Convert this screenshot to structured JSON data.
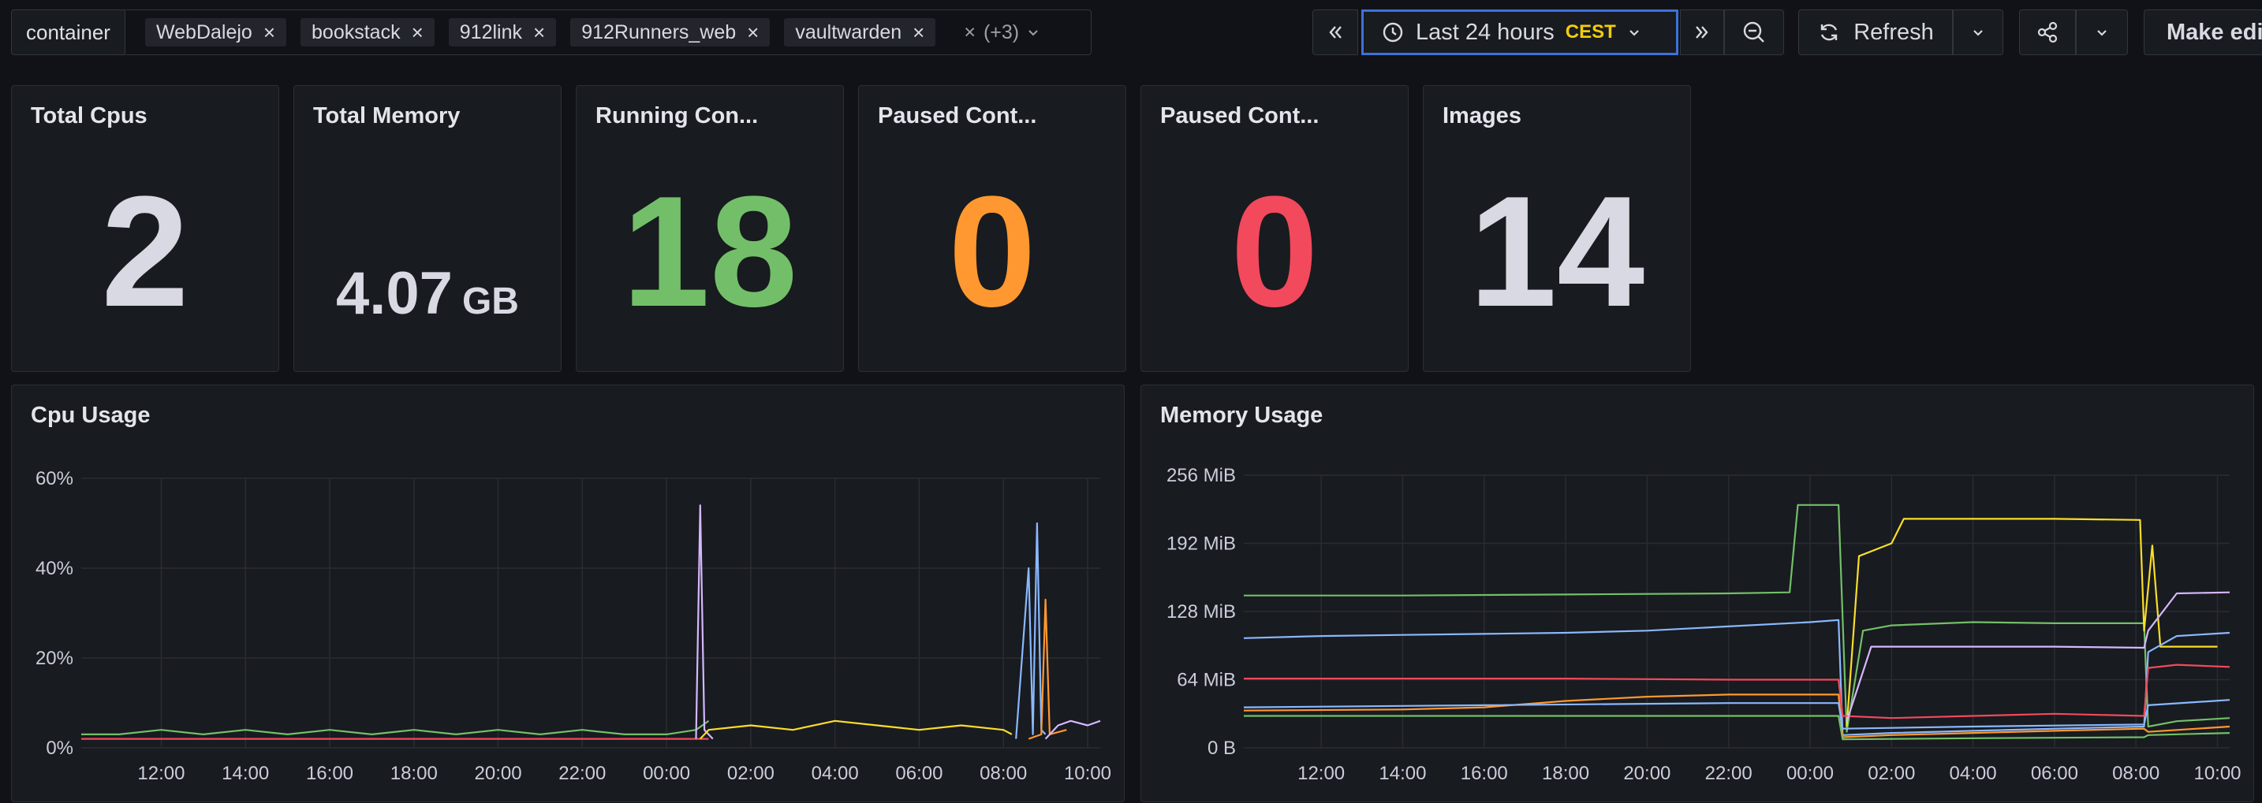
{
  "variables": {
    "label": "container",
    "chips": [
      "WebDalejo",
      "bookstack",
      "912link",
      "912Runners_web",
      "vaultwarden"
    ],
    "more": "(+3)"
  },
  "toolbar": {
    "time_range": "Last 24 hours",
    "timezone": "CEST",
    "refresh": "Refresh",
    "make_editable": "Make editable"
  },
  "stats": [
    {
      "title": "Total Cpus",
      "value": "2",
      "unit": "",
      "color": "#d8d9e2"
    },
    {
      "title": "Total Memory",
      "value": "4.07",
      "unit": "GB",
      "color": "#d8d9e2"
    },
    {
      "title": "Running Con...",
      "value": "18",
      "unit": "",
      "color": "#73bf69"
    },
    {
      "title": "Paused Cont...",
      "value": "0",
      "unit": "",
      "color": "#ff9830"
    },
    {
      "title": "Paused Cont...",
      "value": "0",
      "unit": "",
      "color": "#f2495c"
    },
    {
      "title": "Images",
      "value": "14",
      "unit": "",
      "color": "#d8d9e2"
    }
  ],
  "chart_data": [
    {
      "type": "line",
      "title": "Cpu Usage",
      "y_ticks": [
        "60%",
        "40%",
        "20%",
        "0%"
      ],
      "ylim": [
        0,
        60
      ],
      "x_ticks": [
        "12:00",
        "14:00",
        "16:00",
        "18:00",
        "20:00",
        "22:00",
        "00:00",
        "02:00",
        "04:00",
        "06:00",
        "08:00",
        "10:00"
      ],
      "xlim": [
        10.1,
        34.3
      ],
      "grid": true,
      "series": [
        {
          "color": "#73bf69",
          "points": [
            [
              10.1,
              3
            ],
            [
              11,
              3
            ],
            [
              12,
              4
            ],
            [
              13,
              3
            ],
            [
              14,
              4
            ],
            [
              15,
              3
            ],
            [
              16,
              4
            ],
            [
              17,
              3
            ],
            [
              18,
              4
            ],
            [
              19,
              3
            ],
            [
              20,
              4
            ],
            [
              21,
              3
            ],
            [
              22,
              4
            ],
            [
              23,
              3
            ],
            [
              24,
              3
            ],
            [
              24.7,
              4
            ],
            [
              25,
              6
            ]
          ]
        },
        {
          "color": "#f2495c",
          "points": [
            [
              10.1,
              2
            ],
            [
              12,
              2
            ],
            [
              14,
              2
            ],
            [
              16,
              2
            ],
            [
              18,
              2
            ],
            [
              20,
              2
            ],
            [
              22,
              2
            ],
            [
              24,
              2
            ],
            [
              25,
              2
            ]
          ]
        },
        {
          "color": "#d6b7ff",
          "points": [
            [
              24.7,
              2
            ],
            [
              24.8,
              54
            ],
            [
              24.9,
              4
            ],
            [
              25.1,
              2
            ]
          ]
        },
        {
          "color": "#fade2a",
          "points": [
            [
              24.8,
              2
            ],
            [
              25,
              4
            ],
            [
              26,
              5
            ],
            [
              27,
              4
            ],
            [
              28,
              6
            ],
            [
              29,
              5
            ],
            [
              30,
              4
            ],
            [
              31,
              5
            ],
            [
              32,
              4
            ],
            [
              32.2,
              3
            ]
          ]
        },
        {
          "color": "#8ab8ff",
          "points": [
            [
              32.3,
              2
            ],
            [
              32.6,
              40
            ],
            [
              32.7,
              3
            ],
            [
              32.8,
              50
            ],
            [
              32.9,
              4
            ],
            [
              33,
              3
            ]
          ]
        },
        {
          "color": "#ff9830",
          "points": [
            [
              32.6,
              2
            ],
            [
              32.9,
              3
            ],
            [
              33,
              33
            ],
            [
              33.1,
              3
            ],
            [
              33.5,
              4
            ]
          ]
        },
        {
          "color": "#d6b7ff",
          "points": [
            [
              33,
              2
            ],
            [
              33.3,
              5
            ],
            [
              33.6,
              6
            ],
            [
              34,
              5
            ],
            [
              34.3,
              6
            ]
          ]
        }
      ]
    },
    {
      "type": "line",
      "title": "Memory Usage",
      "y_ticks": [
        "256 MiB",
        "192 MiB",
        "128 MiB",
        "64 MiB",
        "0 B"
      ],
      "ylim": [
        0,
        256
      ],
      "x_ticks": [
        "12:00",
        "14:00",
        "16:00",
        "18:00",
        "20:00",
        "22:00",
        "00:00",
        "02:00",
        "04:00",
        "06:00",
        "08:00",
        "10:00"
      ],
      "xlim": [
        10.1,
        34.3
      ],
      "grid": true,
      "series": [
        {
          "color": "#73bf69",
          "points": [
            [
              10.1,
              143
            ],
            [
              14,
              143
            ],
            [
              18,
              144
            ],
            [
              22,
              145
            ],
            [
              23.5,
              146
            ],
            [
              23.7,
              228
            ],
            [
              24.7,
              228
            ],
            [
              24.9,
              15
            ],
            [
              25.3,
              110
            ],
            [
              26,
              115
            ],
            [
              28,
              118
            ],
            [
              30,
              117
            ],
            [
              32.2,
              117
            ],
            [
              32.3,
              20
            ],
            [
              33,
              25
            ],
            [
              34.3,
              28
            ]
          ]
        },
        {
          "color": "#fade2a",
          "points": [
            [
              24.9,
              20
            ],
            [
              25.2,
              180
            ],
            [
              26,
              192
            ],
            [
              26.3,
              215
            ],
            [
              28,
              215
            ],
            [
              30,
              215
            ],
            [
              32.1,
              214
            ],
            [
              32.2,
              110
            ],
            [
              32.4,
              190
            ],
            [
              32.6,
              95
            ],
            [
              34,
              95
            ]
          ]
        },
        {
          "color": "#8ab8ff",
          "points": [
            [
              10.1,
              103
            ],
            [
              12,
              105
            ],
            [
              14,
              106
            ],
            [
              16,
              107
            ],
            [
              18,
              108
            ],
            [
              20,
              110
            ],
            [
              22,
              114
            ],
            [
              24,
              118
            ],
            [
              24.7,
              120
            ],
            [
              24.8,
              12
            ],
            [
              26,
              14
            ],
            [
              28,
              16
            ],
            [
              30,
              18
            ],
            [
              32.2,
              20
            ],
            [
              32.3,
              90
            ],
            [
              33,
              105
            ],
            [
              34.3,
              108
            ]
          ]
        },
        {
          "color": "#f2495c",
          "points": [
            [
              10.1,
              65
            ],
            [
              14,
              65
            ],
            [
              18,
              65
            ],
            [
              22,
              64
            ],
            [
              24.7,
              64
            ],
            [
              24.8,
              30
            ],
            [
              26,
              28
            ],
            [
              28,
              30
            ],
            [
              30,
              32
            ],
            [
              32.2,
              30
            ],
            [
              32.3,
              75
            ],
            [
              33,
              78
            ],
            [
              34.3,
              76
            ]
          ]
        },
        {
          "color": "#d6b7ff",
          "points": [
            [
              24.9,
              25
            ],
            [
              25.5,
              95
            ],
            [
              28,
              95
            ],
            [
              30,
              95
            ],
            [
              32.2,
              94
            ],
            [
              32.3,
              110
            ],
            [
              33,
              145
            ],
            [
              34.3,
              146
            ]
          ]
        },
        {
          "color": "#ff9830",
          "points": [
            [
              10.1,
              35
            ],
            [
              14,
              36
            ],
            [
              16,
              38
            ],
            [
              18,
              44
            ],
            [
              20,
              48
            ],
            [
              22,
              50
            ],
            [
              24.7,
              50
            ],
            [
              24.8,
              10
            ],
            [
              26,
              12
            ],
            [
              28,
              14
            ],
            [
              30,
              16
            ],
            [
              32.2,
              18
            ],
            [
              32.3,
              15
            ],
            [
              34.3,
              20
            ]
          ]
        },
        {
          "color": "#8ab8ff",
          "points": [
            [
              10.1,
              38
            ],
            [
              16,
              40
            ],
            [
              22,
              42
            ],
            [
              24.7,
              42
            ],
            [
              24.8,
              18
            ],
            [
              28,
              20
            ],
            [
              32.2,
              22
            ],
            [
              32.3,
              40
            ],
            [
              34.3,
              45
            ]
          ]
        },
        {
          "color": "#73bf69",
          "points": [
            [
              10.1,
              30
            ],
            [
              16,
              30
            ],
            [
              22,
              30
            ],
            [
              24.7,
              30
            ],
            [
              24.8,
              8
            ],
            [
              28,
              9
            ],
            [
              32.2,
              10
            ],
            [
              32.3,
              12
            ],
            [
              34.3,
              14
            ]
          ]
        }
      ]
    }
  ]
}
